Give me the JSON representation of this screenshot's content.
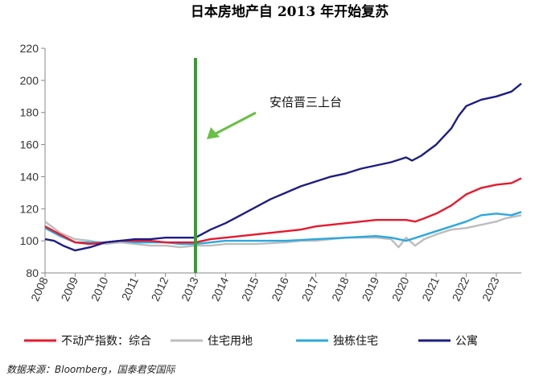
{
  "chart_data": {
    "type": "line",
    "title": "日本房地产自 2013 年开始复苏",
    "x_range": [
      2008,
      2023.83
    ],
    "ylim": [
      80,
      220
    ],
    "yticks": [
      80,
      100,
      120,
      140,
      160,
      180,
      200,
      220
    ],
    "xticks": [
      "2008",
      "2009",
      "2010",
      "2011",
      "2012",
      "2013",
      "2014",
      "2015",
      "2016",
      "2017",
      "2018",
      "2019",
      "2020",
      "2021",
      "2022",
      "2023"
    ],
    "grid": false,
    "legend_position": "bottom",
    "annotation": {
      "text": "安倍晋三上台",
      "x": 2013,
      "marker_color": "#33a02c",
      "arrow_color": "#6abf45"
    },
    "source": "数据来源：Bloomberg，国泰君安国际",
    "series": [
      {
        "name": "不动产指数：综合",
        "color": "#e8192c",
        "points": [
          [
            2008,
            109
          ],
          [
            2008.5,
            104
          ],
          [
            2009,
            99
          ],
          [
            2009.5,
            98
          ],
          [
            2010,
            99
          ],
          [
            2010.5,
            100
          ],
          [
            2011,
            100
          ],
          [
            2011.5,
            100
          ],
          [
            2012,
            99
          ],
          [
            2012.5,
            99
          ],
          [
            2013,
            99
          ],
          [
            2013.5,
            101
          ],
          [
            2014,
            102
          ],
          [
            2015,
            104
          ],
          [
            2016,
            106
          ],
          [
            2016.5,
            107
          ],
          [
            2017,
            109
          ],
          [
            2018,
            111
          ],
          [
            2019,
            113
          ],
          [
            2019.5,
            113
          ],
          [
            2020,
            113
          ],
          [
            2020.3,
            112
          ],
          [
            2020.6,
            114
          ],
          [
            2021,
            117
          ],
          [
            2021.5,
            122
          ],
          [
            2022,
            129
          ],
          [
            2022.5,
            133
          ],
          [
            2023,
            135
          ],
          [
            2023.5,
            136
          ],
          [
            2023.83,
            139
          ]
        ]
      },
      {
        "name": "住宅用地",
        "color": "#bdbdbd",
        "points": [
          [
            2008,
            112
          ],
          [
            2008.5,
            105
          ],
          [
            2009,
            101
          ],
          [
            2009.5,
            100
          ],
          [
            2010,
            98
          ],
          [
            2010.5,
            99
          ],
          [
            2011,
            98
          ],
          [
            2011.5,
            97
          ],
          [
            2012,
            97
          ],
          [
            2012.5,
            96
          ],
          [
            2013,
            97
          ],
          [
            2013.5,
            97
          ],
          [
            2014,
            98
          ],
          [
            2015,
            98
          ],
          [
            2016,
            99
          ],
          [
            2016.5,
            100
          ],
          [
            2017,
            100
          ],
          [
            2017.5,
            101
          ],
          [
            2018,
            102
          ],
          [
            2018.5,
            102
          ],
          [
            2019,
            102
          ],
          [
            2019.5,
            101
          ],
          [
            2019.75,
            96
          ],
          [
            2020,
            102
          ],
          [
            2020.3,
            97
          ],
          [
            2020.6,
            101
          ],
          [
            2021,
            104
          ],
          [
            2021.5,
            107
          ],
          [
            2022,
            108
          ],
          [
            2022.5,
            110
          ],
          [
            2023,
            112
          ],
          [
            2023.3,
            114
          ],
          [
            2023.83,
            116
          ]
        ]
      },
      {
        "name": "独栋住宅",
        "color": "#2aa8e0",
        "points": [
          [
            2008,
            108
          ],
          [
            2008.5,
            103
          ],
          [
            2009,
            99
          ],
          [
            2009.5,
            99
          ],
          [
            2010,
            99
          ],
          [
            2010.5,
            100
          ],
          [
            2011,
            99
          ],
          [
            2011.5,
            99
          ],
          [
            2012,
            99
          ],
          [
            2012.5,
            98
          ],
          [
            2013,
            98
          ],
          [
            2013.5,
            99
          ],
          [
            2014,
            100
          ],
          [
            2015,
            100
          ],
          [
            2016,
            100
          ],
          [
            2017,
            101
          ],
          [
            2018,
            102
          ],
          [
            2019,
            103
          ],
          [
            2019.5,
            102
          ],
          [
            2020,
            100
          ],
          [
            2020.5,
            103
          ],
          [
            2021,
            106
          ],
          [
            2021.5,
            109
          ],
          [
            2022,
            112
          ],
          [
            2022.5,
            116
          ],
          [
            2023,
            117
          ],
          [
            2023.5,
            116
          ],
          [
            2023.83,
            118
          ]
        ]
      },
      {
        "name": "公寓",
        "color": "#1c1d86",
        "points": [
          [
            2008,
            101
          ],
          [
            2008.3,
            100
          ],
          [
            2008.6,
            97
          ],
          [
            2009,
            94
          ],
          [
            2009.5,
            96
          ],
          [
            2010,
            99
          ],
          [
            2010.5,
            100
          ],
          [
            2011,
            101
          ],
          [
            2011.5,
            101
          ],
          [
            2012,
            102
          ],
          [
            2012.5,
            102
          ],
          [
            2013,
            102
          ],
          [
            2013.5,
            107
          ],
          [
            2014,
            111
          ],
          [
            2014.5,
            116
          ],
          [
            2015,
            121
          ],
          [
            2015.5,
            126
          ],
          [
            2016,
            130
          ],
          [
            2016.5,
            134
          ],
          [
            2017,
            137
          ],
          [
            2017.5,
            140
          ],
          [
            2018,
            142
          ],
          [
            2018.5,
            145
          ],
          [
            2019,
            147
          ],
          [
            2019.5,
            149
          ],
          [
            2020,
            152
          ],
          [
            2020.2,
            150
          ],
          [
            2020.5,
            153
          ],
          [
            2021,
            160
          ],
          [
            2021.5,
            170
          ],
          [
            2021.75,
            178
          ],
          [
            2022,
            184
          ],
          [
            2022.5,
            188
          ],
          [
            2023,
            190
          ],
          [
            2023.5,
            193
          ],
          [
            2023.83,
            198
          ]
        ]
      }
    ]
  }
}
